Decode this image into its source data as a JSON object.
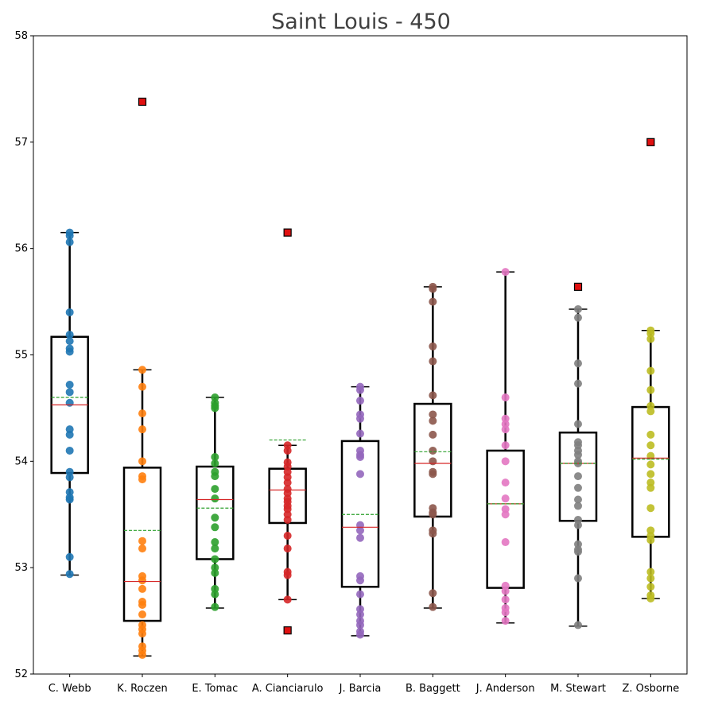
{
  "chart_data": {
    "type": "box",
    "title": "Saint Louis - 450",
    "xlabel": "",
    "ylabel": "",
    "ylim": [
      52,
      58
    ],
    "yticks": [
      52,
      53,
      54,
      55,
      56,
      57,
      58
    ],
    "grid": false,
    "categories": [
      "C. Webb",
      "K. Roczen",
      "E. Tomac",
      "A. Cianciarulo",
      "J. Barcia",
      "B. Baggett",
      "J. Anderson",
      "M. Stewart",
      "Z. Osborne"
    ],
    "colors": [
      "#1f77b4",
      "#ff7f0e",
      "#2ca02c",
      "#d62728",
      "#9467bd",
      "#8c564b",
      "#e377c2",
      "#7f7f7f",
      "#bcbd22"
    ],
    "boxes": [
      {
        "name": "C. Webb",
        "whisker_low": 52.93,
        "q1": 53.89,
        "median": 54.53,
        "mean": 54.6,
        "q3": 55.17,
        "whisker_high": 56.15,
        "outliers": [],
        "points": [
          56.15,
          56.12,
          56.06,
          55.4,
          55.19,
          55.13,
          55.06,
          55.03,
          54.72,
          54.65,
          54.55,
          54.3,
          54.25,
          54.1,
          53.9,
          53.85,
          53.71,
          53.66,
          53.64,
          53.1,
          52.94
        ]
      },
      {
        "name": "K. Roczen",
        "whisker_low": 52.17,
        "q1": 52.5,
        "median": 52.87,
        "mean": 53.35,
        "q3": 53.94,
        "whisker_high": 54.86,
        "outliers": [
          57.38
        ],
        "points": [
          54.86,
          54.7,
          54.45,
          54.3,
          54.0,
          53.86,
          53.83,
          53.25,
          53.18,
          52.92,
          52.88,
          52.8,
          52.68,
          52.65,
          52.56,
          52.46,
          52.42,
          52.38,
          52.26,
          52.22,
          52.18
        ]
      },
      {
        "name": "E. Tomac",
        "whisker_low": 52.62,
        "q1": 53.08,
        "median": 53.64,
        "mean": 53.56,
        "q3": 53.95,
        "whisker_high": 54.6,
        "outliers": [],
        "points": [
          54.6,
          54.55,
          54.52,
          54.5,
          54.04,
          53.98,
          53.9,
          53.86,
          53.74,
          53.65,
          53.47,
          53.38,
          53.24,
          53.18,
          53.08,
          53.0,
          52.95,
          52.8,
          52.75,
          52.63
        ]
      },
      {
        "name": "A. Cianciarulo",
        "whisker_low": 52.7,
        "q1": 53.42,
        "median": 53.73,
        "mean": 54.2,
        "q3": 53.93,
        "whisker_high": 54.15,
        "outliers": [
          56.15,
          52.41
        ],
        "points": [
          54.15,
          54.1,
          53.99,
          53.95,
          53.9,
          53.85,
          53.8,
          53.74,
          53.7,
          53.65,
          53.62,
          53.58,
          53.55,
          53.5,
          53.45,
          53.3,
          53.18,
          52.96,
          52.93,
          52.7
        ]
      },
      {
        "name": "J. Barcia",
        "whisker_low": 52.36,
        "q1": 52.82,
        "median": 53.38,
        "mean": 53.5,
        "q3": 54.19,
        "whisker_high": 54.7,
        "outliers": [],
        "points": [
          54.7,
          54.67,
          54.57,
          54.44,
          54.4,
          54.26,
          54.1,
          54.06,
          54.04,
          53.88,
          53.4,
          53.35,
          53.28,
          52.92,
          52.88,
          52.75,
          52.61,
          52.56,
          52.5,
          52.46,
          52.4,
          52.37
        ]
      },
      {
        "name": "B. Baggett",
        "whisker_low": 52.62,
        "q1": 53.48,
        "median": 53.98,
        "mean": 54.09,
        "q3": 54.54,
        "whisker_high": 55.64,
        "outliers": [],
        "points": [
          55.64,
          55.62,
          55.5,
          55.08,
          54.94,
          54.62,
          54.44,
          54.38,
          54.25,
          54.1,
          54.0,
          53.9,
          53.88,
          53.56,
          53.52,
          53.5,
          53.35,
          53.32,
          52.76,
          52.63
        ]
      },
      {
        "name": "J. Anderson",
        "whisker_low": 52.48,
        "q1": 52.81,
        "median": 53.6,
        "mean": 53.6,
        "q3": 54.1,
        "whisker_high": 55.78,
        "outliers": [],
        "points": [
          55.78,
          54.6,
          54.4,
          54.35,
          54.3,
          54.15,
          54.0,
          53.8,
          53.65,
          53.55,
          53.5,
          53.24,
          52.83,
          52.78,
          52.7,
          52.62,
          52.58,
          52.5
        ]
      },
      {
        "name": "M. Stewart",
        "whisker_low": 52.45,
        "q1": 53.44,
        "median": 53.98,
        "mean": 53.98,
        "q3": 54.27,
        "whisker_high": 55.43,
        "outliers": [
          55.64
        ],
        "points": [
          55.43,
          55.35,
          54.92,
          54.73,
          54.35,
          54.18,
          54.15,
          54.1,
          54.06,
          54.0,
          53.98,
          53.86,
          53.75,
          53.64,
          53.58,
          53.45,
          53.4,
          53.22,
          53.17,
          53.15,
          52.9,
          52.46
        ]
      },
      {
        "name": "Z. Osborne",
        "whisker_low": 52.71,
        "q1": 53.29,
        "median": 54.03,
        "mean": 54.02,
        "q3": 54.51,
        "whisker_high": 55.23,
        "outliers": [
          57.0
        ],
        "points": [
          55.23,
          55.2,
          55.15,
          54.85,
          54.67,
          54.52,
          54.47,
          54.25,
          54.15,
          54.05,
          53.97,
          53.88,
          53.8,
          53.75,
          53.56,
          53.35,
          53.3,
          53.26,
          52.96,
          52.9,
          52.82,
          52.74,
          52.71
        ]
      }
    ]
  }
}
